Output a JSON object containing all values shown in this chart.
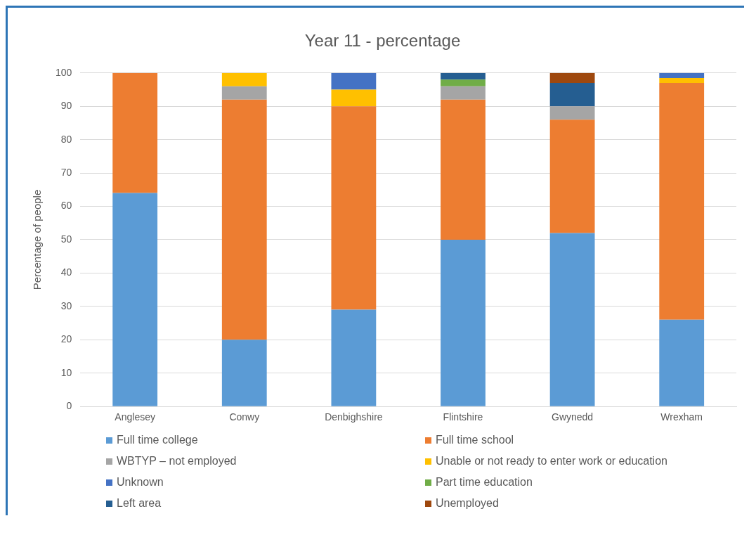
{
  "chart_data": {
    "type": "bar",
    "title": "Year 11 - percentage",
    "ylabel": "Percentage of people",
    "categories": [
      "Anglesey",
      "Conwy",
      "Denbighshire",
      "Flintshire",
      "Gwynedd",
      "Wrexham"
    ],
    "stacked": true,
    "ylim": [
      0,
      100
    ],
    "yticks": [
      0,
      10,
      20,
      30,
      40,
      50,
      60,
      70,
      80,
      90,
      100
    ],
    "grid": "y",
    "legend": "bottom",
    "series": [
      {
        "name": "Full time college",
        "color": "#5b9bd5",
        "values": [
          64,
          20,
          29,
          50,
          52,
          26
        ]
      },
      {
        "name": "Full time school",
        "color": "#ed7d31",
        "values": [
          36,
          72,
          61,
          42,
          34,
          71
        ]
      },
      {
        "name": "WBTYP – not employed",
        "color": "#a5a5a5",
        "values": [
          0,
          4,
          0,
          4,
          4,
          0
        ]
      },
      {
        "name": "Unable or not ready to enter work or education",
        "color": "#ffc000",
        "values": [
          0,
          4,
          5,
          0,
          0,
          1.5
        ]
      },
      {
        "name": "Unknown",
        "color": "#4472c4",
        "values": [
          0,
          0,
          5,
          0,
          0,
          1.5
        ]
      },
      {
        "name": "Part time education",
        "color": "#70ad47",
        "values": [
          0,
          0,
          0,
          2,
          0,
          0
        ]
      },
      {
        "name": "Left area",
        "color": "#255e91",
        "values": [
          0,
          0,
          0,
          2,
          7,
          0
        ]
      },
      {
        "name": "Unemployed",
        "color": "#9e480e",
        "values": [
          0,
          0,
          0,
          0,
          3,
          0
        ]
      }
    ]
  }
}
